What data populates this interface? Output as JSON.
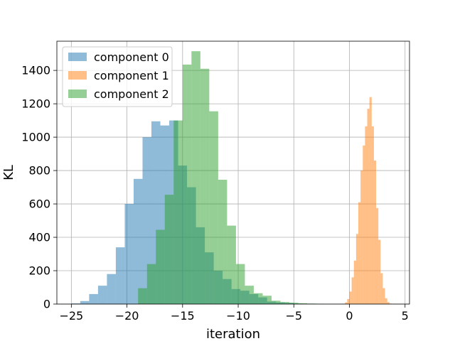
{
  "chart_data": {
    "type": "histogram",
    "title": "",
    "xlabel": "iteration",
    "ylabel": "KL",
    "xlim": [
      -26.3,
      5.4
    ],
    "ylim": [
      0,
      1575
    ],
    "xticks": [
      -25,
      -20,
      -15,
      -10,
      -5,
      0,
      5
    ],
    "xtick_labels": [
      "−25",
      "−20",
      "−15",
      "−10",
      "−5",
      "0",
      "5"
    ],
    "yticks": [
      0,
      200,
      400,
      600,
      800,
      1000,
      1200,
      1400
    ],
    "ytick_labels": [
      "0",
      "200",
      "400",
      "600",
      "800",
      "1000",
      "1200",
      "1400"
    ],
    "grid": true,
    "legend_position": "upper-left",
    "series": [
      {
        "name": "component 0",
        "color": "#1f77b4",
        "alpha": 0.5,
        "bin_width": 0.8,
        "bins": [
          {
            "x0": -25.0,
            "count": 4
          },
          {
            "x0": -24.2,
            "count": 18
          },
          {
            "x0": -23.4,
            "count": 60
          },
          {
            "x0": -22.6,
            "count": 110
          },
          {
            "x0": -21.8,
            "count": 180
          },
          {
            "x0": -21.0,
            "count": 340
          },
          {
            "x0": -20.2,
            "count": 600
          },
          {
            "x0": -19.4,
            "count": 750
          },
          {
            "x0": -18.6,
            "count": 1000
          },
          {
            "x0": -17.8,
            "count": 1095
          },
          {
            "x0": -17.0,
            "count": 1070
          },
          {
            "x0": -16.2,
            "count": 1100
          },
          {
            "x0": -15.4,
            "count": 830
          },
          {
            "x0": -14.6,
            "count": 700
          },
          {
            "x0": -13.8,
            "count": 460
          },
          {
            "x0": -13.0,
            "count": 310
          },
          {
            "x0": -12.2,
            "count": 200
          },
          {
            "x0": -11.4,
            "count": 150
          },
          {
            "x0": -10.6,
            "count": 90
          },
          {
            "x0": -9.8,
            "count": 80
          },
          {
            "x0": -9.0,
            "count": 60
          },
          {
            "x0": -8.2,
            "count": 40
          },
          {
            "x0": -7.4,
            "count": 15
          },
          {
            "x0": -6.6,
            "count": 10
          },
          {
            "x0": -5.8,
            "count": 7
          },
          {
            "x0": -5.0,
            "count": 3
          },
          {
            "x0": -4.2,
            "count": 2
          }
        ]
      },
      {
        "name": "component 1",
        "color": "#ff7f0e",
        "alpha": 0.5,
        "bin_width": 0.2,
        "bins": [
          {
            "x0": -0.4,
            "count": 10
          },
          {
            "x0": -0.2,
            "count": 30
          },
          {
            "x0": 0.0,
            "count": 75
          },
          {
            "x0": 0.2,
            "count": 160
          },
          {
            "x0": 0.4,
            "count": 260
          },
          {
            "x0": 0.6,
            "count": 420
          },
          {
            "x0": 0.8,
            "count": 610
          },
          {
            "x0": 1.0,
            "count": 800
          },
          {
            "x0": 1.2,
            "count": 950
          },
          {
            "x0": 1.4,
            "count": 1065
          },
          {
            "x0": 1.6,
            "count": 1170
          },
          {
            "x0": 1.8,
            "count": 1240
          },
          {
            "x0": 2.0,
            "count": 1065
          },
          {
            "x0": 2.2,
            "count": 860
          },
          {
            "x0": 2.4,
            "count": 575
          },
          {
            "x0": 2.6,
            "count": 385
          },
          {
            "x0": 2.8,
            "count": 185
          },
          {
            "x0": 3.0,
            "count": 95
          },
          {
            "x0": 3.2,
            "count": 35
          },
          {
            "x0": 3.4,
            "count": 12
          },
          {
            "x0": 3.6,
            "count": 3
          }
        ]
      },
      {
        "name": "component 2",
        "color": "#2ca02c",
        "alpha": 0.5,
        "bin_width": 0.8,
        "bins": [
          {
            "x0": -19.0,
            "count": 95
          },
          {
            "x0": -18.2,
            "count": 240
          },
          {
            "x0": -17.4,
            "count": 445
          },
          {
            "x0": -16.6,
            "count": 655
          },
          {
            "x0": -15.8,
            "count": 1100
          },
          {
            "x0": -15.0,
            "count": 1435
          },
          {
            "x0": -14.2,
            "count": 1515
          },
          {
            "x0": -13.4,
            "count": 1410
          },
          {
            "x0": -12.6,
            "count": 1155
          },
          {
            "x0": -11.8,
            "count": 745
          },
          {
            "x0": -11.0,
            "count": 470
          },
          {
            "x0": -10.2,
            "count": 240
          },
          {
            "x0": -9.4,
            "count": 110
          },
          {
            "x0": -8.6,
            "count": 65
          },
          {
            "x0": -7.8,
            "count": 50
          },
          {
            "x0": -7.0,
            "count": 20
          },
          {
            "x0": -6.2,
            "count": 12
          },
          {
            "x0": -5.4,
            "count": 8
          },
          {
            "x0": -4.6,
            "count": 5
          },
          {
            "x0": -3.8,
            "count": 3
          },
          {
            "x0": -3.0,
            "count": 2
          }
        ]
      }
    ]
  }
}
